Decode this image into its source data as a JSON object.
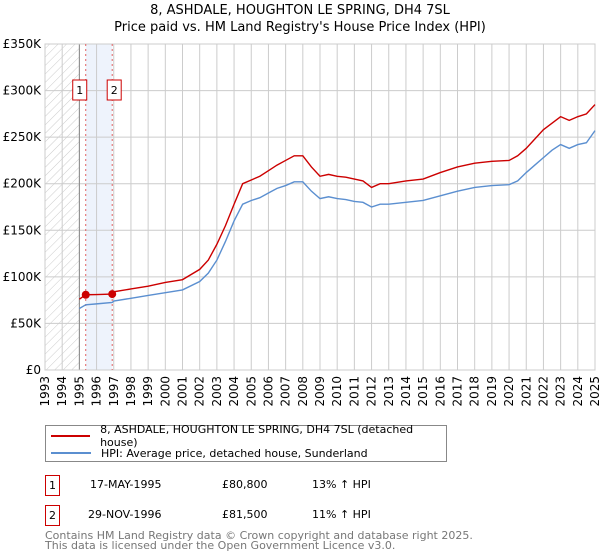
{
  "title": "8, ASHDALE, HOUGHTON LE SPRING, DH4 7SL",
  "subtitle": "Price paid vs. HM Land Registry's House Price Index (HPI)",
  "chart_data": {
    "type": "line",
    "ylim": [
      0,
      350000
    ],
    "xlim": [
      1993,
      2025
    ],
    "y_ticks": [
      0,
      50000,
      100000,
      150000,
      200000,
      250000,
      300000,
      350000
    ],
    "y_tick_labels": [
      "£0",
      "£50K",
      "£100K",
      "£150K",
      "£200K",
      "£250K",
      "£300K",
      "£350K"
    ],
    "x_tick_labels": [
      "1993",
      "1994",
      "1995",
      "1996",
      "1997",
      "1998",
      "1999",
      "2000",
      "2001",
      "2002",
      "2003",
      "2004",
      "2005",
      "2006",
      "2007",
      "2008",
      "2009",
      "2010",
      "2011",
      "2012",
      "2013",
      "2014",
      "2015",
      "2016",
      "2017",
      "2018",
      "2019",
      "2020",
      "2021",
      "2022",
      "2023",
      "2024",
      "2025"
    ],
    "grid": true,
    "hatched_until": 1995.0,
    "series": [
      {
        "name": "8, ASHDALE, HOUGHTON LE SPRING, DH4 7SL (detached house)",
        "color": "#cc0000",
        "x": [
          1995.0,
          1995.37,
          1996,
          1996.91,
          1997,
          1998,
          1999,
          2000,
          2001,
          2002,
          2002.5,
          2003,
          2003.5,
          2004,
          2004.5,
          2005,
          2005.5,
          2006,
          2006.5,
          2007,
          2007.5,
          2008,
          2008.5,
          2009,
          2009.5,
          2010,
          2010.5,
          2011,
          2011.5,
          2012,
          2012.5,
          2013,
          2014,
          2015,
          2016,
          2017,
          2018,
          2019,
          2020,
          2020.5,
          2021,
          2021.5,
          2022,
          2022.5,
          2023,
          2023.5,
          2024,
          2024.5,
          2025
        ],
        "values": [
          76000,
          80800,
          81000,
          81500,
          84000,
          87000,
          90000,
          94000,
          97000,
          108000,
          118000,
          135000,
          155000,
          178000,
          200000,
          204000,
          208000,
          214000,
          220000,
          225000,
          230000,
          230000,
          218000,
          208000,
          210000,
          208000,
          207000,
          205000,
          203000,
          196000,
          200000,
          200000,
          203000,
          205000,
          212000,
          218000,
          222000,
          224000,
          225000,
          230000,
          238000,
          248000,
          258000,
          265000,
          272000,
          268000,
          272000,
          275000,
          285000
        ]
      },
      {
        "name": "HPI: Average price, detached house, Sunderland",
        "color": "#5b8fd0",
        "x": [
          1995.0,
          1995.37,
          1996,
          1996.91,
          1997,
          1998,
          1999,
          2000,
          2001,
          2002,
          2002.5,
          2003,
          2003.5,
          2004,
          2004.5,
          2005,
          2005.5,
          2006,
          2006.5,
          2007,
          2007.5,
          2008,
          2008.5,
          2009,
          2009.5,
          2010,
          2010.5,
          2011,
          2011.5,
          2012,
          2012.5,
          2013,
          2014,
          2015,
          2016,
          2017,
          2018,
          2019,
          2020,
          2020.5,
          2021,
          2021.5,
          2022,
          2022.5,
          2023,
          2023.5,
          2024,
          2024.5,
          2025
        ],
        "values": [
          66000,
          70000,
          71000,
          72500,
          74000,
          77000,
          80000,
          83000,
          86000,
          95000,
          104000,
          118000,
          138000,
          160000,
          178000,
          182000,
          185000,
          190000,
          195000,
          198000,
          202000,
          202000,
          192000,
          184000,
          186000,
          184000,
          183000,
          181000,
          180000,
          175000,
          178000,
          178000,
          180000,
          182000,
          187000,
          192000,
          196000,
          198000,
          199000,
          203000,
          212000,
          220000,
          228000,
          236000,
          242000,
          238000,
          242000,
          244000,
          257000
        ]
      }
    ],
    "sales": [
      {
        "label": "1",
        "date": "17-MAY-1995",
        "x": 1995.37,
        "price": "£80,800",
        "value": 80800,
        "hpi": "13% ↑ HPI"
      },
      {
        "label": "2",
        "date": "29-NOV-1996",
        "x": 1996.91,
        "price": "£81,500",
        "value": 81500,
        "hpi": "11% ↑ HPI"
      }
    ]
  },
  "footer": {
    "line1": "Contains HM Land Registry data © Crown copyright and database right 2025.",
    "line2": "This data is licensed under the Open Government Licence v3.0."
  }
}
